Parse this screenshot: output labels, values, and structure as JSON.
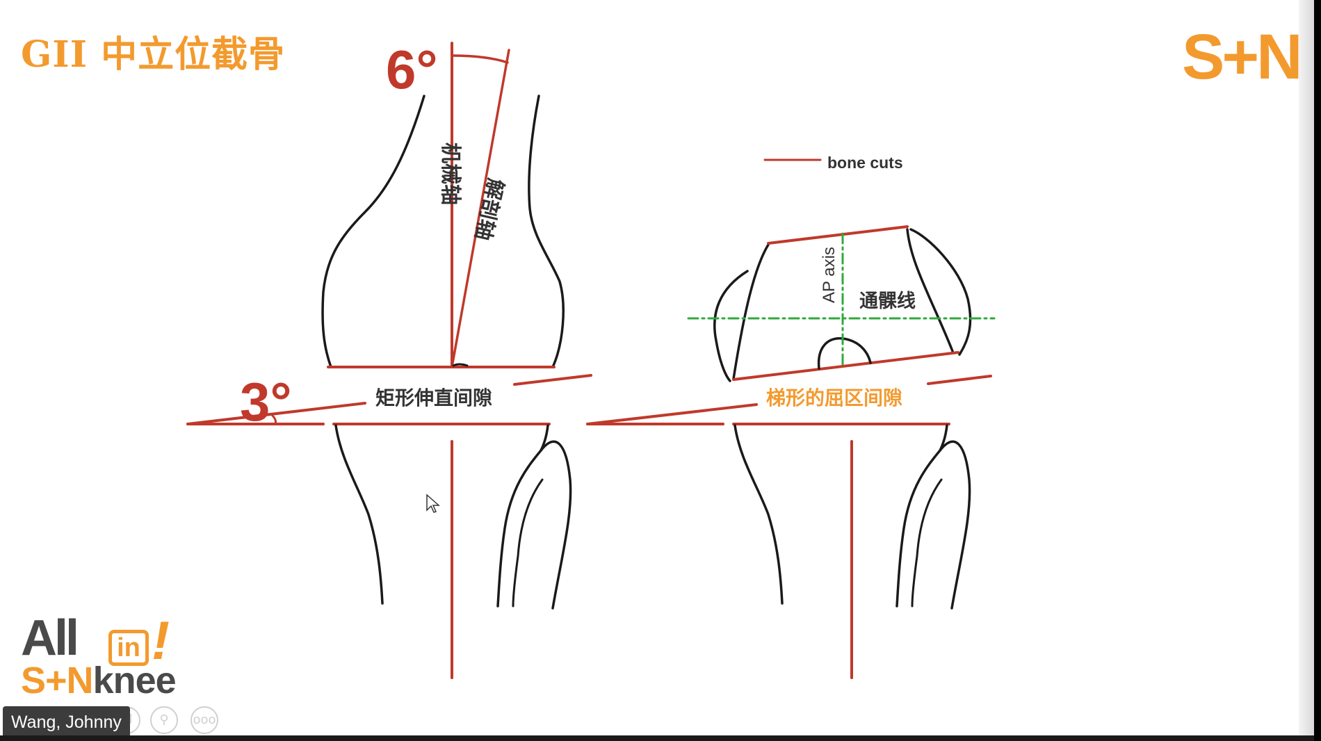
{
  "slide": {
    "title": "GII 中立位截骨",
    "brand_logo": "S+N"
  },
  "diagram": {
    "femoral_valgus_angle": "6°",
    "tibial_varus_angle": "3°",
    "mechanical_axis_label": "机械轴",
    "anatomical_axis_label": "解剖轴",
    "extension_gap_label": "矩形伸直间隙",
    "flexion_gap_label": "梯形的屈区间隙",
    "legend_label": "bone cuts",
    "ap_axis_label": "AP axis",
    "transepicondylar_line_label": "通髁线"
  },
  "colors": {
    "accent_orange": "#f39a2e",
    "bone_cut_red": "#c0392b",
    "axis_green": "#2eaa3a",
    "outline": "#1a1a1a"
  },
  "watermark": {
    "all": "All",
    "in": "in",
    "excl": "!",
    "sn": "S+N",
    "knee": "knee"
  },
  "meeting": {
    "participant_name": "Wang, Johnny",
    "controls": [
      "pointer-icon",
      "play-icon",
      "pen-icon",
      "copy-icon",
      "zoom-icon",
      "more-icon"
    ],
    "more_label": "ooo"
  }
}
